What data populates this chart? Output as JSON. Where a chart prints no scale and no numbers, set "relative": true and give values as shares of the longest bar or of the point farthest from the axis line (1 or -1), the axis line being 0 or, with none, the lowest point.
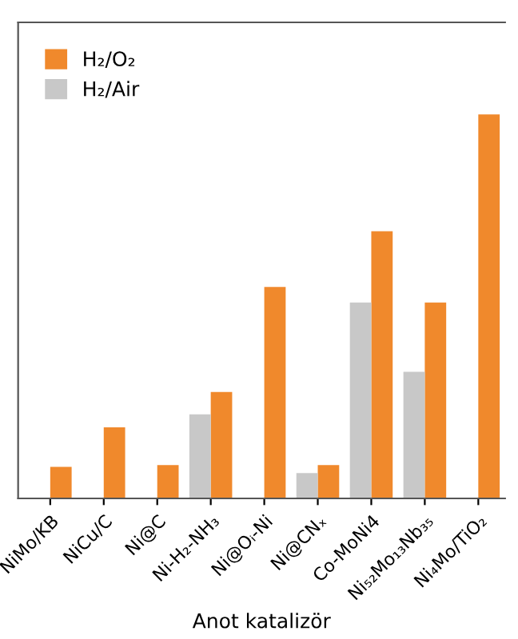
{
  "chart_data": {
    "type": "bar",
    "xlabel": "Anot katalizör",
    "relative": true,
    "tick_labels": "x",
    "legend": "top left",
    "grid": false,
    "categories": [
      "NiMo/KB",
      "NiCu/C",
      "Ni@C",
      "Ni-H₂-NH₃",
      "Ni@Oᵢ-Ni",
      "Ni@CNₓ",
      "Co-MoNi4",
      "Ni₅₂Mo₁₃Nb₃₅",
      "Ni₄Mo/TiO₂"
    ],
    "series": [
      {
        "name": "H₂/O₂",
        "color": "#f0892c",
        "values": [
          0.082,
          0.185,
          0.087,
          0.277,
          0.551,
          0.087,
          0.696,
          0.51,
          1.0
        ]
      },
      {
        "name": "H₂/Air",
        "color": "#c8c8c8",
        "values": [
          null,
          null,
          null,
          0.219,
          null,
          0.066,
          0.51,
          0.33,
          null
        ]
      }
    ]
  }
}
